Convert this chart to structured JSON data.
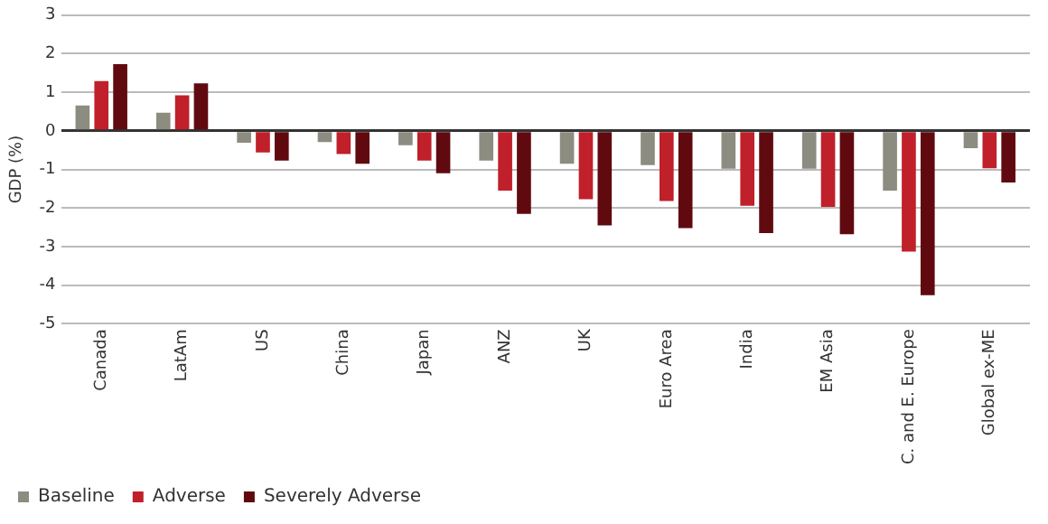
{
  "chart_data": {
    "type": "bar",
    "ylabel": "GDP (%)",
    "categories": [
      "Canada",
      "LatAm",
      "US",
      "China",
      "Japan",
      "ANZ",
      "UK",
      "Euro Area",
      "India",
      "EM Asia",
      "C. and E. Europe",
      "Global ex-ME"
    ],
    "series": [
      {
        "name": "Baseline",
        "color": "#8c8c80",
        "values": [
          0.66,
          0.47,
          -0.31,
          -0.29,
          -0.37,
          -0.77,
          -0.85,
          -0.89,
          -0.98,
          -0.98,
          -1.55,
          -0.45
        ]
      },
      {
        "name": "Adverse",
        "color": "#c0202a",
        "values": [
          1.29,
          0.92,
          -0.56,
          -0.6,
          -0.77,
          -1.55,
          -1.77,
          -1.82,
          -1.94,
          -1.97,
          -3.13,
          -0.97
        ]
      },
      {
        "name": "Severely Adverse",
        "color": "#600a10",
        "values": [
          1.73,
          1.23,
          -0.77,
          -0.85,
          -1.1,
          -2.15,
          -2.45,
          -2.52,
          -2.65,
          -2.68,
          -4.26,
          -1.34
        ]
      }
    ],
    "ylim": [
      -5,
      3
    ],
    "yticks": [
      -5,
      -4,
      -3,
      -2,
      -1,
      0,
      1,
      2,
      3
    ],
    "grid": "y",
    "legend": "bottom left"
  }
}
